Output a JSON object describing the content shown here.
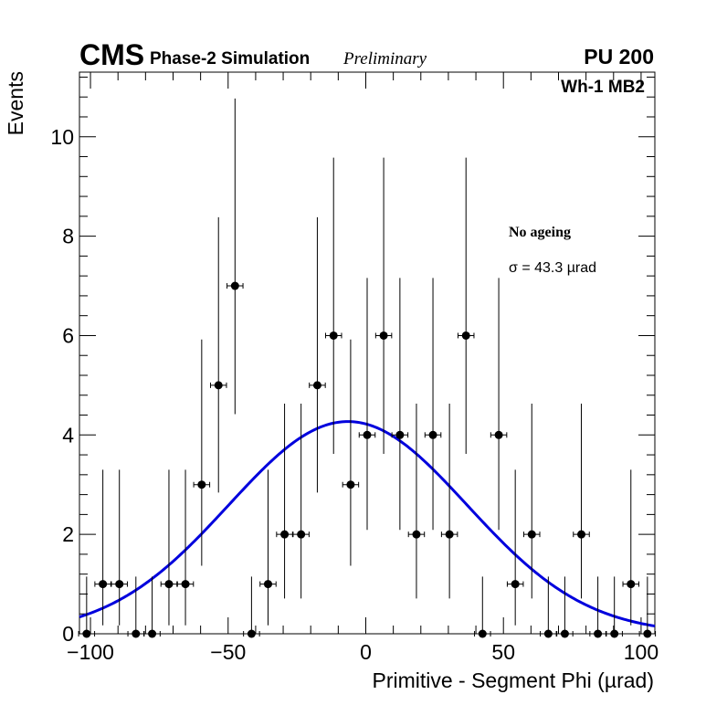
{
  "header": {
    "experiment": "CMS",
    "subtitle": "Phase-2 Simulation",
    "status": "Preliminary",
    "pileup": "PU 200",
    "region": "Wh-1 MB2"
  },
  "legend": {
    "condition": "No ageing",
    "sigma": "σ = 43.3  µrad"
  },
  "colors": {
    "fit": "#0000dd",
    "points": "#000000"
  },
  "chart_data": {
    "type": "scatter",
    "title": "",
    "xlabel": "Primitive - Segment Phi (µrad)",
    "ylabel": "Events",
    "xlim": [
      -104,
      105
    ],
    "ylim": [
      0,
      11.3
    ],
    "x_ticks": [
      -100,
      -50,
      0,
      50,
      100
    ],
    "x_tick_labels": [
      "−100",
      "−50",
      "0",
      "50",
      "100"
    ],
    "y_ticks": [
      0,
      2,
      4,
      6,
      8,
      10
    ],
    "y_tick_labels": [
      "0",
      "2",
      "4",
      "6",
      "8",
      "10"
    ],
    "bin_half_width": 2.9,
    "series": [
      {
        "name": "data",
        "x": [
          -101.4,
          -95.5,
          -89.5,
          -83.5,
          -77.6,
          -71.5,
          -65.5,
          -59.6,
          -53.5,
          -47.5,
          -41.5,
          -35.5,
          -29.5,
          -23.5,
          -17.6,
          -11.7,
          -5.5,
          0.5,
          6.5,
          12.4,
          18.4,
          24.4,
          30.4,
          36.4,
          42.4,
          48.3,
          54.3,
          60.3,
          66.3,
          72.3,
          78.3,
          84.3,
          90.3,
          96.3,
          102.3
        ],
        "y": [
          0,
          1,
          1,
          0,
          0,
          1,
          1,
          3,
          5,
          7,
          0,
          1,
          2,
          2,
          5,
          6,
          3,
          4,
          6,
          4,
          2,
          4,
          2,
          6,
          0,
          4,
          1,
          2,
          0,
          0,
          2,
          0,
          0,
          1,
          0
        ],
        "err_up": [
          1.15,
          2.3,
          2.3,
          1.15,
          1.15,
          2.3,
          2.3,
          2.92,
          3.38,
          3.77,
          1.15,
          2.3,
          2.63,
          2.63,
          3.38,
          3.58,
          2.92,
          3.16,
          3.58,
          3.16,
          2.63,
          3.16,
          2.63,
          3.58,
          1.15,
          3.16,
          2.3,
          2.63,
          1.15,
          1.15,
          2.63,
          1.15,
          1.15,
          2.3,
          1.15
        ],
        "err_down": [
          0,
          0.83,
          0.83,
          0,
          0,
          0.83,
          0.83,
          1.63,
          2.16,
          2.58,
          0,
          0.83,
          1.29,
          1.29,
          2.16,
          2.38,
          1.63,
          1.91,
          2.38,
          1.91,
          1.29,
          1.91,
          1.29,
          2.38,
          0,
          1.91,
          0.83,
          1.29,
          0,
          0,
          1.29,
          0,
          0,
          0.83,
          0
        ]
      },
      {
        "name": "gaussian fit",
        "type": "line",
        "amplitude": 4.27,
        "mean": -6.5,
        "sigma": 43.3,
        "x_range": [
          -104,
          105
        ]
      }
    ]
  }
}
